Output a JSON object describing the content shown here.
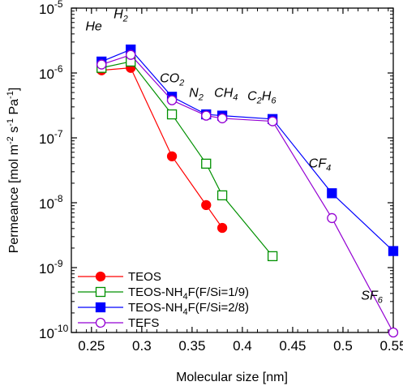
{
  "chart_data": {
    "type": "line",
    "xlabel": "Molecular size [nm]",
    "ylabel": "Permeance [mol m⁻² s⁻¹ Pa⁻¹]",
    "xlim": [
      0.23,
      0.55
    ],
    "ylim": [
      1e-10,
      1e-05
    ],
    "y_scale": "log",
    "grid": false,
    "legend_position": "bottom-left",
    "x_ticks": [
      {
        "value": 0.25,
        "label": "0.25"
      },
      {
        "value": 0.3,
        "label": "0.3"
      },
      {
        "value": 0.35,
        "label": "0.35"
      },
      {
        "value": 0.4,
        "label": "0.4"
      },
      {
        "value": 0.45,
        "label": "0.45"
      },
      {
        "value": 0.5,
        "label": "0.5"
      },
      {
        "value": 0.55,
        "label": "0.55"
      }
    ],
    "y_ticks": [
      {
        "value": 1e-10,
        "base": "10",
        "exp": "-10"
      },
      {
        "value": 1e-09,
        "base": "10",
        "exp": "-9"
      },
      {
        "value": 1e-08,
        "base": "10",
        "exp": "-8"
      },
      {
        "value": 1e-07,
        "base": "10",
        "exp": "-7"
      },
      {
        "value": 1e-06,
        "base": "10",
        "exp": "-6"
      },
      {
        "value": 1e-05,
        "base": "10",
        "exp": "-5"
      }
    ],
    "annotations": [
      {
        "main": "He",
        "sub": "",
        "x": 0.244,
        "y": 4.5e-06
      },
      {
        "main": "H",
        "sub": "2",
        "x": 0.272,
        "y": 7e-06
      },
      {
        "main": "CO",
        "sub": "2",
        "x": 0.318,
        "y": 7.2e-07
      },
      {
        "main": "N",
        "sub": "2",
        "x": 0.347,
        "y": 4.3e-07
      },
      {
        "main": "CH",
        "sub": "4",
        "x": 0.372,
        "y": 4.3e-07
      },
      {
        "main": "C",
        "sub": "2",
        "main2": "H",
        "sub2": "6",
        "x": 0.405,
        "y": 3.8e-07
      },
      {
        "main": "CF",
        "sub": "4",
        "x": 0.466,
        "y": 3.5e-08
      },
      {
        "main": "SF",
        "sub": "6",
        "x": 0.518,
        "y": 3.2e-10
      }
    ],
    "series": [
      {
        "name": "TEOS",
        "color": "#ff0000",
        "marker": "circle",
        "filled": true,
        "x": [
          0.26,
          0.289,
          0.33,
          0.364,
          0.38
        ],
        "y": [
          1.1e-06,
          1.2e-06,
          5.2e-08,
          9.2e-09,
          4.1e-09
        ]
      },
      {
        "name": "TEOS-NH₄F(F/Si=1/9)",
        "color": "#009000",
        "marker": "square",
        "filled": false,
        "x": [
          0.26,
          0.289,
          0.33,
          0.364,
          0.38,
          0.43
        ],
        "y": [
          1.2e-06,
          1.5e-06,
          2.3e-07,
          4e-08,
          1.3e-08,
          1.5e-09
        ]
      },
      {
        "name": "TEOS-NH₄F(F/Si=2/8)",
        "color": "#0000ff",
        "marker": "square",
        "filled": true,
        "x": [
          0.26,
          0.289,
          0.33,
          0.364,
          0.38,
          0.43,
          0.489,
          0.55
        ],
        "y": [
          1.5e-06,
          2.3e-06,
          4.3e-07,
          2.3e-07,
          2.2e-07,
          1.95e-07,
          1.4e-08,
          1.8e-09
        ]
      },
      {
        "name": "TEFS",
        "color": "#9400d3",
        "marker": "circle",
        "filled": false,
        "x": [
          0.26,
          0.289,
          0.33,
          0.364,
          0.38,
          0.43,
          0.489,
          0.55
        ],
        "y": [
          1.35e-06,
          1.9e-06,
          3.8e-07,
          2.2e-07,
          2e-07,
          1.8e-07,
          5.8e-09,
          1e-10
        ]
      }
    ]
  }
}
